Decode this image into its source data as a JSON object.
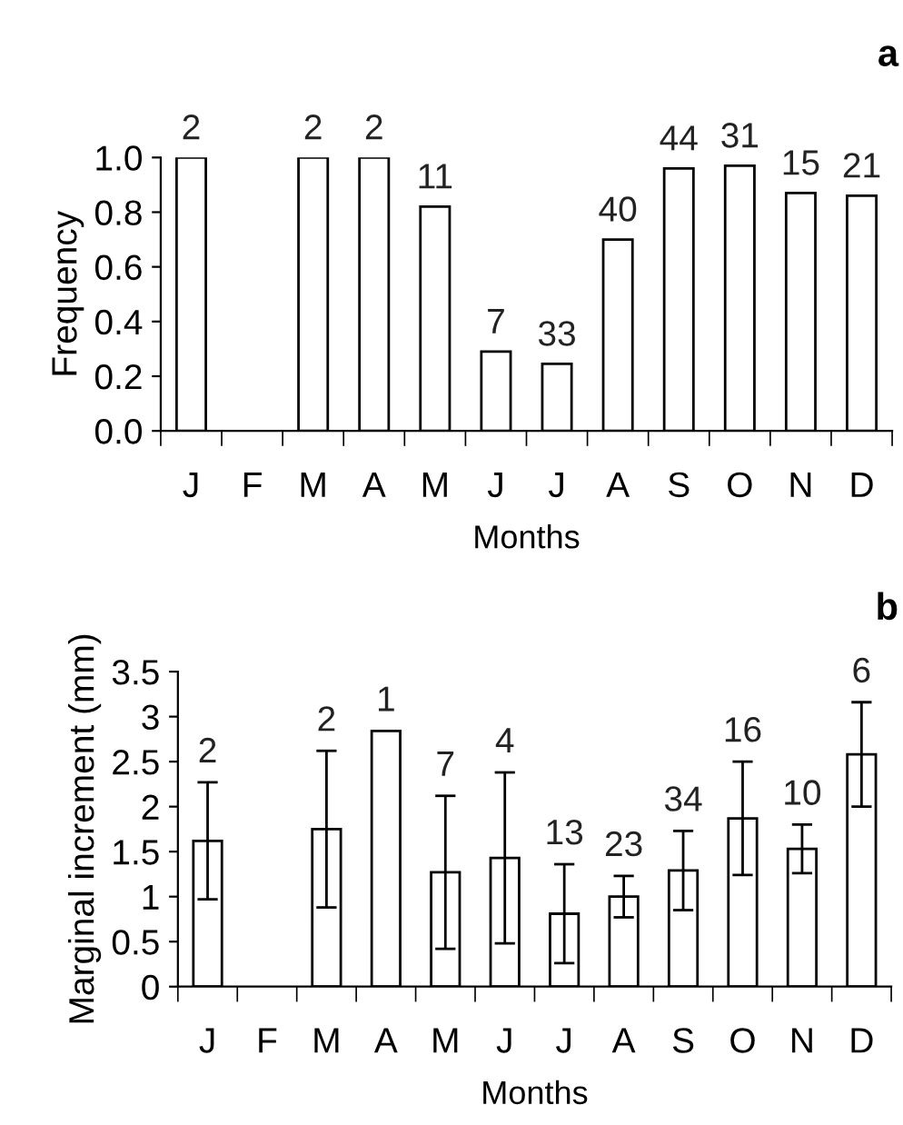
{
  "chart_data": [
    {
      "type": "bar",
      "title": "a",
      "xlabel": "Months",
      "ylabel": "Frequency",
      "categories": [
        "J",
        "F",
        "M",
        "A",
        "M",
        "J",
        "J",
        "A",
        "S",
        "O",
        "N",
        "D"
      ],
      "values": [
        1.0,
        null,
        1.0,
        1.0,
        0.82,
        0.29,
        0.245,
        0.7,
        0.96,
        0.97,
        0.87,
        0.86
      ],
      "annotations": [
        "2",
        "2",
        "2",
        "11",
        "7",
        "33",
        "40",
        "44",
        "31",
        "15",
        "21"
      ],
      "color": "#ffffff",
      "legend": false,
      "ylim": [
        0,
        1.0
      ],
      "yticks": [
        {
          "value": 0,
          "label": "0.0"
        },
        {
          "value": 0.2,
          "label": "0.2"
        },
        {
          "value": 0.4,
          "label": "0.4"
        },
        {
          "value": 0.6,
          "label": "0.6"
        },
        {
          "value": 0.8,
          "label": "0.8"
        },
        {
          "value": 1.0,
          "label": "1.0"
        }
      ],
      "grid": false
    },
    {
      "type": "bar",
      "title": "b",
      "xlabel": "Months",
      "ylabel": "Marginal increment (mm)",
      "categories": [
        "J",
        "F",
        "M",
        "A",
        "M",
        "J",
        "J",
        "A",
        "S",
        "O",
        "N",
        "D"
      ],
      "values": [
        1.62,
        null,
        1.75,
        2.84,
        1.27,
        1.43,
        0.81,
        1.0,
        1.29,
        1.87,
        1.53,
        2.58
      ],
      "errors": [
        0.65,
        null,
        0.87,
        null,
        0.85,
        0.95,
        0.55,
        0.23,
        0.44,
        0.63,
        0.27,
        0.58
      ],
      "annotations": [
        "2",
        "2",
        "1",
        "7",
        "4",
        "13",
        "23",
        "34",
        "16",
        "10",
        "6"
      ],
      "color": "#ffffff",
      "legend": false,
      "ylim": [
        0,
        3.5
      ],
      "yticks": [
        0,
        0.5,
        1,
        1.5,
        2,
        2.5,
        3,
        3.5
      ],
      "grid": false
    }
  ]
}
